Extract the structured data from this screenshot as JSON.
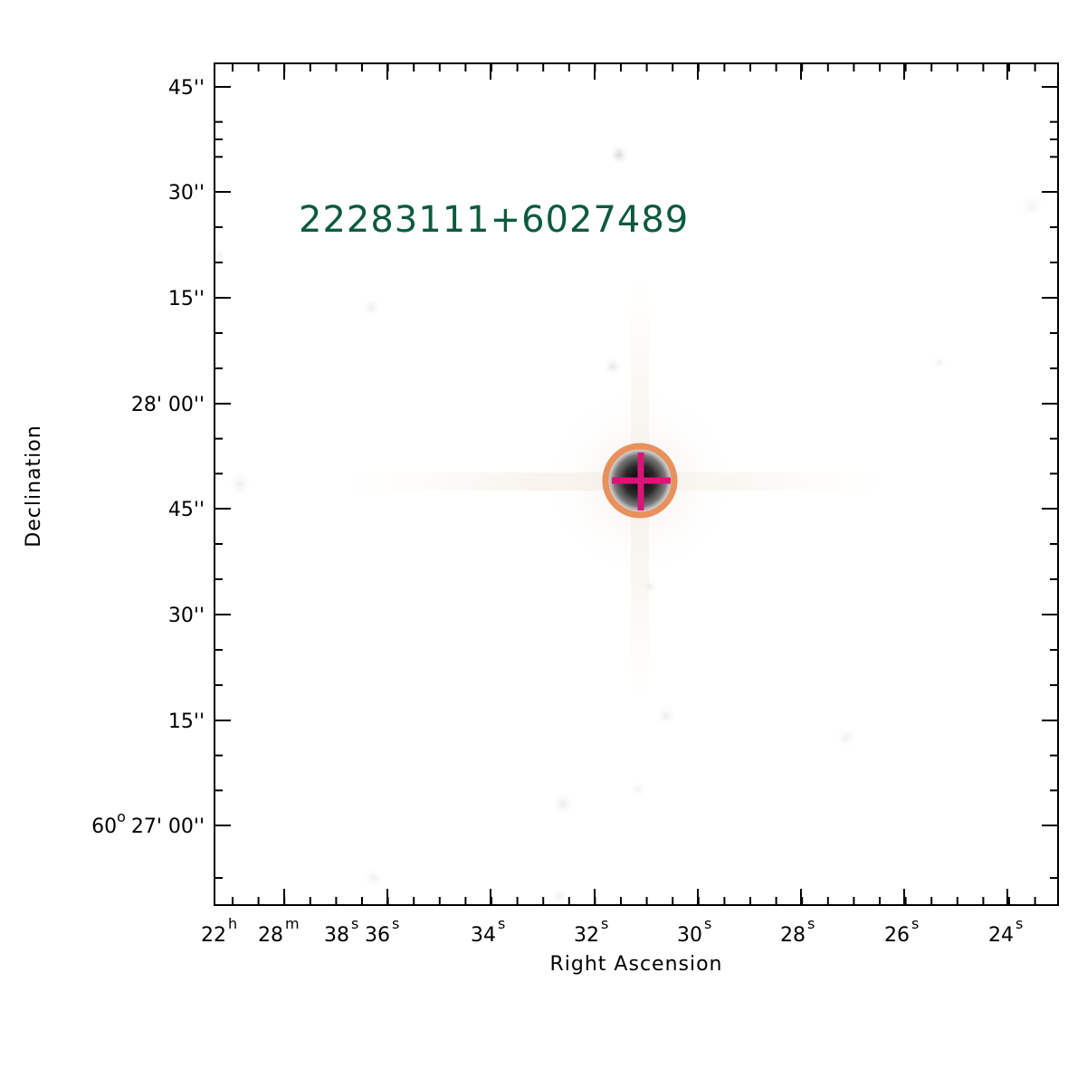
{
  "object_label": "22283111+6027489",
  "colors": {
    "label": "#0d5a3c",
    "circle": "#e8915c",
    "cross": "#dc1478"
  },
  "axes": {
    "x_label": "Right Ascension",
    "y_label": "Declination"
  },
  "ra_ticks": [
    {
      "main": "22",
      "sup": "h"
    },
    {
      "main": "28",
      "sup": "m"
    },
    {
      "main": "38",
      "sup": "s"
    },
    {
      "main": "36",
      "sup": "s"
    },
    {
      "main": "34",
      "sup": "s"
    },
    {
      "main": "32",
      "sup": "s"
    },
    {
      "main": "30",
      "sup": "s"
    },
    {
      "main": "28",
      "sup": "s"
    },
    {
      "main": "26",
      "sup": "s"
    },
    {
      "main": "24",
      "sup": "s"
    }
  ],
  "dec_ticks": [
    {
      "label": "45''"
    },
    {
      "label": "30''"
    },
    {
      "label": "15''"
    },
    {
      "label": "28' 00''"
    },
    {
      "label": "45''"
    },
    {
      "label": "30''"
    },
    {
      "label": "15''"
    },
    {
      "pre": "60",
      "sup": "o",
      "label": "27' 00''"
    }
  ]
}
